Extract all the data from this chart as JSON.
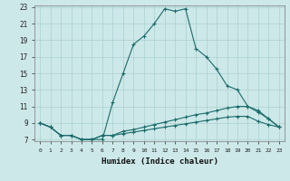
{
  "xlabel": "Humidex (Indice chaleur)",
  "bg_color": "#cde8e8",
  "grid_color": "#aad0d0",
  "line_color": "#1a6b6b",
  "x_min": 0,
  "x_max": 23,
  "y_min": 7,
  "y_max": 23,
  "y_ticks": [
    7,
    9,
    11,
    13,
    15,
    17,
    19,
    21,
    23
  ],
  "x_ticks": [
    0,
    1,
    2,
    3,
    4,
    5,
    6,
    7,
    8,
    9,
    10,
    11,
    12,
    13,
    14,
    15,
    16,
    17,
    18,
    19,
    20,
    21,
    22,
    23
  ],
  "series": [
    {
      "x": [
        0,
        1,
        2,
        3,
        4,
        5,
        6,
        7,
        8,
        9,
        10,
        11,
        12,
        13,
        14,
        15,
        16,
        17,
        18,
        19,
        20,
        21,
        22,
        23
      ],
      "y": [
        9,
        8.5,
        7.5,
        7.5,
        7,
        7,
        7,
        11.5,
        15,
        18.5,
        19.5,
        21,
        22.8,
        22.5,
        22.8,
        18,
        17,
        15.5,
        13.5,
        13,
        11,
        10.5,
        9.5,
        8.5
      ]
    },
    {
      "x": [
        0,
        1,
        2,
        3,
        4,
        5,
        6,
        7,
        8,
        9,
        10,
        11,
        12,
        13,
        14,
        15,
        16,
        17,
        18,
        19,
        20,
        21,
        22,
        23
      ],
      "y": [
        9,
        8.5,
        7.5,
        7.5,
        7,
        7,
        7.5,
        7.5,
        8.0,
        8.2,
        8.5,
        8.8,
        9.1,
        9.4,
        9.7,
        10.0,
        10.2,
        10.5,
        10.8,
        11.0,
        11.0,
        10.3,
        9.5,
        8.5
      ]
    },
    {
      "x": [
        0,
        1,
        2,
        3,
        4,
        5,
        6,
        7,
        8,
        9,
        10,
        11,
        12,
        13,
        14,
        15,
        16,
        17,
        18,
        19,
        20,
        21,
        22,
        23
      ],
      "y": [
        9,
        8.5,
        7.5,
        7.5,
        7,
        7,
        7.5,
        7.5,
        7.7,
        7.9,
        8.1,
        8.3,
        8.5,
        8.7,
        8.9,
        9.1,
        9.3,
        9.5,
        9.7,
        9.8,
        9.8,
        9.2,
        8.8,
        8.5
      ]
    }
  ]
}
